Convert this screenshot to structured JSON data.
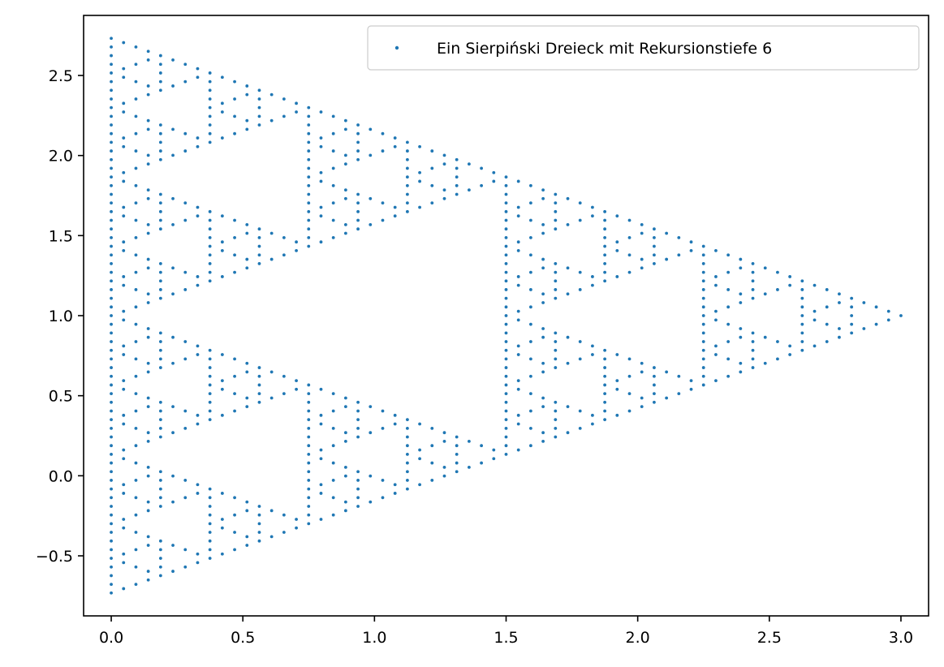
{
  "chart_data": {
    "type": "scatter",
    "title": "",
    "xlabel": "",
    "ylabel": "",
    "xlim": [
      -0.105,
      3.105
    ],
    "ylim": [
      -0.875,
      2.875
    ],
    "x_ticks": [
      0.0,
      0.5,
      1.0,
      1.5,
      2.0,
      2.5,
      3.0
    ],
    "x_tick_labels": [
      "0.0",
      "0.5",
      "1.0",
      "1.5",
      "2.0",
      "2.5",
      "3.0"
    ],
    "y_ticks": [
      -0.5,
      0.0,
      0.5,
      1.0,
      1.5,
      2.0,
      2.5
    ],
    "y_tick_labels": [
      "−0.5",
      "0.0",
      "0.5",
      "1.0",
      "1.5",
      "2.0",
      "2.5"
    ],
    "grid": false,
    "legend_position": "upper right",
    "series": [
      {
        "name": "Ein Sierpiński Dreieck mit Rekursionstiefe 6",
        "color": "#1f77b4",
        "marker": "point",
        "recursion_depth": 6,
        "base_triangle": [
          [
            0.0,
            -0.732
          ],
          [
            0.0,
            2.732
          ],
          [
            3.0,
            1.0
          ]
        ]
      }
    ]
  }
}
